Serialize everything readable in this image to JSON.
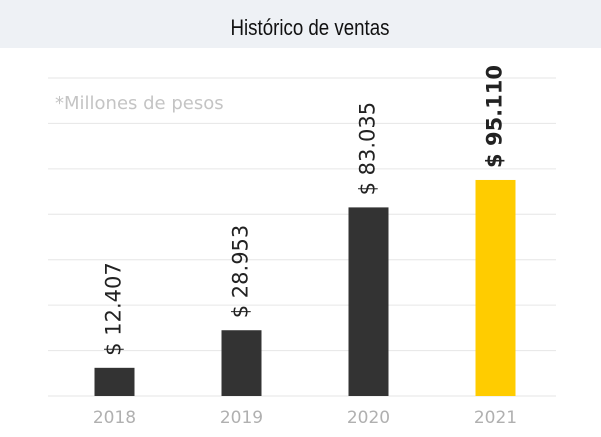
{
  "chart_data": {
    "type": "bar",
    "title": "Histórico de ventas",
    "annotation": "*Millones de pesos",
    "categories": [
      "2018",
      "2019",
      "2020",
      "2021"
    ],
    "values": [
      12407,
      28953,
      83035,
      95110
    ],
    "value_labels": [
      "$ 12.407",
      "$ 28.953",
      "$ 83.035",
      "$ 95.110"
    ],
    "colors": [
      "#333333",
      "#333333",
      "#333333",
      "#ffcc00"
    ],
    "highlight_index": 3,
    "ylim": [
      0,
      140000
    ],
    "yticks": [
      0,
      20000,
      40000,
      60000,
      80000,
      100000,
      120000,
      140000
    ],
    "grid": true
  }
}
